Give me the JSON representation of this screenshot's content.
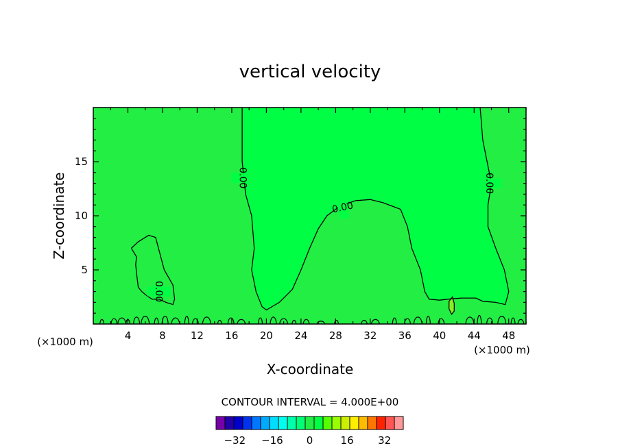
{
  "chart_data": {
    "type": "contour",
    "title": "vertical velocity",
    "xlabel": "X-coordinate",
    "ylabel": "Z-coordinate",
    "x_units": "(×1000 m)",
    "x_units_right": "(×1000 m)",
    "xlim": [
      0,
      50
    ],
    "ylim": [
      0,
      20
    ],
    "x_ticks": [
      4,
      8,
      12,
      16,
      20,
      24,
      28,
      32,
      36,
      40,
      44,
      48
    ],
    "y_ticks": [
      5,
      10,
      15
    ],
    "contour_label": "0.00",
    "contour_interval_text": "CONTOUR INTERVAL = 4.000E+00",
    "contour_interval": 4,
    "colors": {
      "negative_region": "#22ee44",
      "positive_region": "#00ff44",
      "weak_positive_cell": "#88ee22",
      "contour_line": "#000000"
    },
    "colorbar": {
      "labels": [
        "−32",
        "−16",
        "0",
        "16",
        "32"
      ],
      "label_values": [
        -32,
        -16,
        0,
        16,
        32
      ],
      "levels": [
        -40,
        -36,
        -32,
        -28,
        -24,
        -20,
        -16,
        -12,
        -8,
        -4,
        0,
        4,
        8,
        12,
        16,
        20,
        24,
        28,
        32,
        36,
        40
      ],
      "colors": [
        "#7700aa",
        "#2200aa",
        "#0000cc",
        "#0033ee",
        "#0077ff",
        "#00aaff",
        "#00ddff",
        "#00ffee",
        "#00ffaa",
        "#00ff77",
        "#22ee44",
        "#00ff44",
        "#55ff00",
        "#99ff00",
        "#ccee00",
        "#ffee00",
        "#ffbb00",
        "#ff7700",
        "#ff2200",
        "#ff5555",
        "#ff9999"
      ]
    },
    "zero_contours": [
      {
        "name": "left-cell",
        "points": [
          [
            4.4,
            7
          ],
          [
            5.2,
            7.6
          ],
          [
            6.4,
            8.2
          ],
          [
            7.2,
            8
          ],
          [
            7.6,
            6.8
          ],
          [
            8.2,
            5
          ],
          [
            9.2,
            3.6
          ],
          [
            9.4,
            2.3
          ],
          [
            9.2,
            1.8
          ],
          [
            8.4,
            2
          ],
          [
            7.6,
            2.3
          ],
          [
            6.8,
            2.3
          ],
          [
            6.2,
            2.6
          ],
          [
            5.6,
            3
          ],
          [
            5.2,
            3.4
          ],
          [
            5.1,
            4
          ],
          [
            5,
            4.7
          ],
          [
            4.9,
            5.5
          ],
          [
            5,
            6.2
          ],
          [
            4.4,
            7
          ]
        ]
      },
      {
        "name": "central-updraft",
        "points": [
          [
            17.2,
            20
          ],
          [
            17.2,
            15
          ],
          [
            17.6,
            12
          ],
          [
            18.3,
            10
          ],
          [
            18.6,
            7
          ],
          [
            18.3,
            5
          ],
          [
            18.8,
            3
          ],
          [
            19.5,
            1.6
          ],
          [
            20,
            1.3
          ],
          [
            21.5,
            2
          ],
          [
            23,
            3.2
          ],
          [
            24,
            5
          ],
          [
            25,
            7
          ],
          [
            26,
            8.8
          ],
          [
            27,
            10
          ],
          [
            28.5,
            10.9
          ],
          [
            30.3,
            11.4
          ],
          [
            32,
            11.5
          ],
          [
            33.5,
            11.2
          ],
          [
            35.5,
            10.6
          ],
          [
            36.3,
            9
          ],
          [
            36.8,
            7
          ],
          [
            37.8,
            5
          ],
          [
            38.3,
            3
          ],
          [
            38.8,
            2.3
          ],
          [
            40,
            2.2
          ],
          [
            41,
            2.3
          ],
          [
            42.5,
            2.4
          ],
          [
            44.2,
            2.4
          ],
          [
            45,
            2.1
          ],
          [
            46.5,
            2
          ],
          [
            47.6,
            1.8
          ],
          [
            48,
            3
          ],
          [
            47.5,
            5
          ],
          [
            46.5,
            7
          ],
          [
            45.6,
            9
          ],
          [
            45.6,
            11
          ],
          [
            46,
            13
          ],
          [
            45.5,
            15
          ],
          [
            45,
            17
          ],
          [
            44.7,
            20
          ]
        ]
      },
      {
        "name": "right-cell",
        "points": [
          [
            41.1,
            1.4
          ],
          [
            41.1,
            2.1
          ],
          [
            41.5,
            2.5
          ],
          [
            41.7,
            1.9
          ],
          [
            41.7,
            1.2
          ],
          [
            41.4,
            0.9
          ],
          [
            41.1,
            1.4
          ]
        ]
      }
    ],
    "surface_blobs": [
      [
        1,
        0.6
      ],
      [
        2.4,
        0.7
      ],
      [
        3.3,
        0.8
      ],
      [
        4,
        0.6
      ],
      [
        5,
        0.9
      ],
      [
        6,
        1
      ],
      [
        7.3,
        0.8
      ],
      [
        8.3,
        1
      ],
      [
        9.5,
        0.8
      ],
      [
        10.8,
        1
      ],
      [
        11.8,
        0.7
      ],
      [
        13.1,
        0.9
      ],
      [
        14.6,
        0.5
      ],
      [
        15.9,
        0.8
      ],
      [
        17.1,
        0.6
      ],
      [
        19.3,
        0.8
      ],
      [
        20.8,
        0.9
      ],
      [
        22,
        0.7
      ],
      [
        23.2,
        0.5
      ],
      [
        24.6,
        0.6
      ],
      [
        26.3,
        0.4
      ],
      [
        28.1,
        0.5
      ],
      [
        31.3,
        0.5
      ],
      [
        32.6,
        0.6
      ],
      [
        34.8,
        0.8
      ],
      [
        36.3,
        0.7
      ],
      [
        37.5,
        0.9
      ],
      [
        38.7,
        1
      ],
      [
        40.2,
        0.7
      ],
      [
        43.5,
        0.9
      ],
      [
        44.6,
        1.1
      ],
      [
        45.8,
        0.8
      ],
      [
        47.2,
        1
      ],
      [
        48.5,
        0.8
      ],
      [
        49.4,
        0.6
      ]
    ]
  }
}
